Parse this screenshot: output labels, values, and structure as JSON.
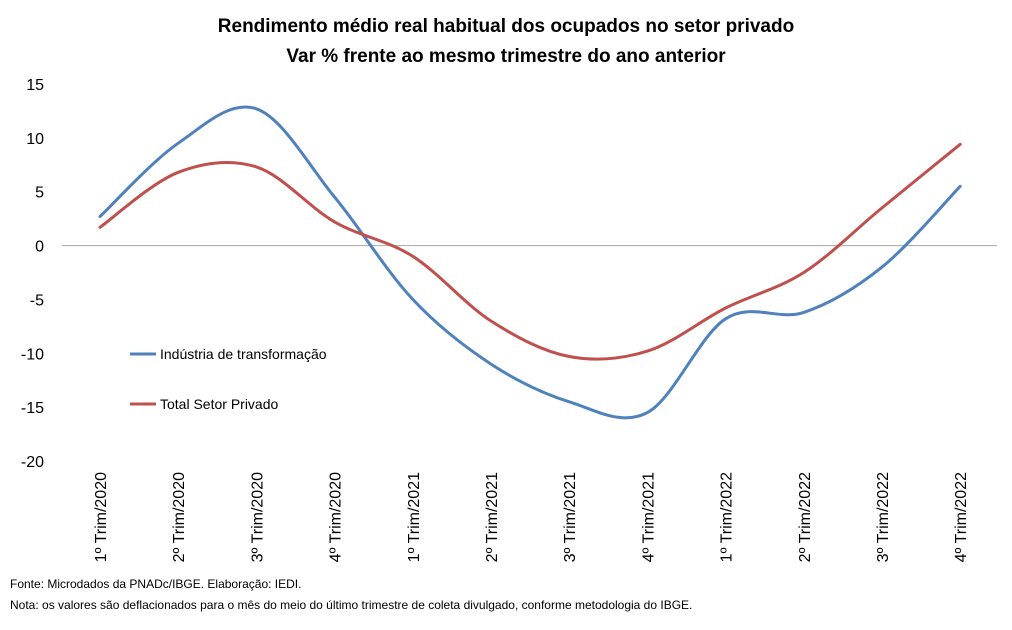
{
  "chart_data": {
    "type": "line",
    "title": "Rendimento médio real habitual dos ocupados no setor privado",
    "subtitle": "Var %  frente ao mesmo trimestre do ano anterior",
    "categories": [
      "1º Trim/2020",
      "2º Trim/2020",
      "3º Trim/2020",
      "4º Trim/2020",
      "1º Trim/2021",
      "2º Trim/2021",
      "3º Trim/2021",
      "4º Trim/2021",
      "1º Trim/2022",
      "2º Trim/2022",
      "3º Trim/2022",
      "4º Trim/2022"
    ],
    "series": [
      {
        "name": "Indústria de transformação",
        "color": "#4F81BD",
        "values": [
          2.7,
          9.5,
          12.7,
          4.5,
          -5.0,
          -11.0,
          -14.5,
          -15.5,
          -6.8,
          -6.2,
          -2.0,
          5.5
        ]
      },
      {
        "name": "Total Setor Privado",
        "color": "#C0504D",
        "values": [
          1.7,
          6.8,
          7.3,
          2.2,
          -1.0,
          -7.0,
          -10.3,
          -9.8,
          -5.8,
          -2.5,
          3.5,
          9.4
        ]
      }
    ],
    "ylim": [
      -20,
      15
    ],
    "yticks": [
      15,
      10,
      5,
      0,
      -5,
      -10,
      -15,
      -20
    ],
    "xlabel": "",
    "ylabel": "",
    "grid": false,
    "zero_line": true,
    "legend_position": "left-inside"
  },
  "footnotes": {
    "source": "Fonte: Microdados da PNADc/IBGE. Elaboração: IEDI.",
    "note": "Nota: os valores são deflacionados para o mês do meio do último trimestre de coleta divulgado, conforme metodologia do IBGE."
  }
}
